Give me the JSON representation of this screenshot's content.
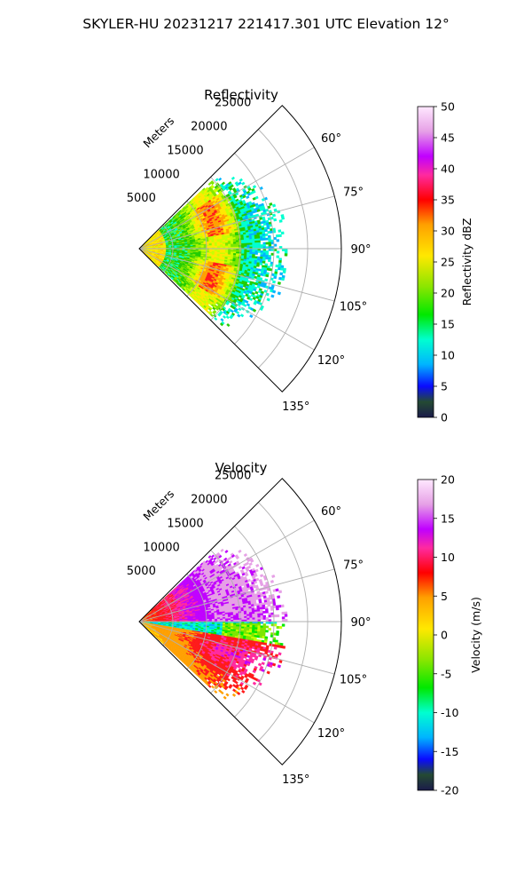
{
  "figure": {
    "title": "SKYLER-HU  20231217  221417.301 UTC Elevation 12°"
  },
  "chart_data": [
    {
      "type": "polar-sector",
      "title": "Reflectivity",
      "range_label": "Meters",
      "range_ticks": [
        5000,
        10000,
        15000,
        20000,
        25000
      ],
      "range_max": 30000,
      "theta_ticks": [
        "60°",
        "75°",
        "90°",
        "105°",
        "120°",
        "135°"
      ],
      "theta_tick_values": [
        60,
        75,
        90,
        105,
        120,
        135
      ],
      "theta_range": [
        45,
        135
      ],
      "grid": true,
      "colorbar": {
        "label": "Reflectivity dBZ",
        "ticks": [
          0,
          5,
          10,
          15,
          20,
          25,
          30,
          35,
          40,
          45,
          50
        ],
        "range": [
          0,
          50
        ]
      },
      "palette": {
        "stops": [
          "#1c1c3c",
          "#2e4b2a",
          "#0000ff",
          "#00d0ff",
          "#00ffcc",
          "#22cc00",
          "#7ee600",
          "#c8ff00",
          "#ffea00",
          "#ffa500",
          "#ff1a1a",
          "#ff2a8a",
          "#cc00ff",
          "#ee99ee",
          "#ffffff"
        ]
      },
      "echo_coverage": {
        "max_range_m": 22000,
        "band": "reds and yellows near 10000–15000 m, greens beyond 15000 m",
        "peak_dbz": 38
      }
    },
    {
      "type": "polar-sector",
      "title": "Velocity",
      "range_label": "Meters",
      "range_ticks": [
        5000,
        10000,
        15000,
        20000,
        25000
      ],
      "range_max": 30000,
      "theta_ticks": [
        "60°",
        "75°",
        "90°",
        "105°",
        "120°",
        "135°"
      ],
      "theta_tick_values": [
        60,
        75,
        90,
        105,
        120,
        135
      ],
      "theta_range": [
        45,
        135
      ],
      "grid": true,
      "colorbar": {
        "label": "Velocity (m/s)",
        "ticks": [
          -20,
          -15,
          -10,
          -5,
          0,
          5,
          10,
          15,
          20
        ],
        "range": [
          -20,
          20
        ]
      },
      "palette": {
        "stops": [
          "#1c1c3c",
          "#2e4b2a",
          "#0000ff",
          "#00d0ff",
          "#00ffcc",
          "#22cc00",
          "#7ee600",
          "#c8ff00",
          "#ffea00",
          "#ffa500",
          "#ff1a1a",
          "#ff2a8a",
          "#cc00ff",
          "#ee99ee",
          "#ffffff"
        ]
      },
      "echo_coverage": {
        "max_range_m": 22000,
        "band": "magenta/red north sector, cyan-green band near 95°, yellow-red south sector",
        "peak_velocity": 15
      }
    }
  ]
}
